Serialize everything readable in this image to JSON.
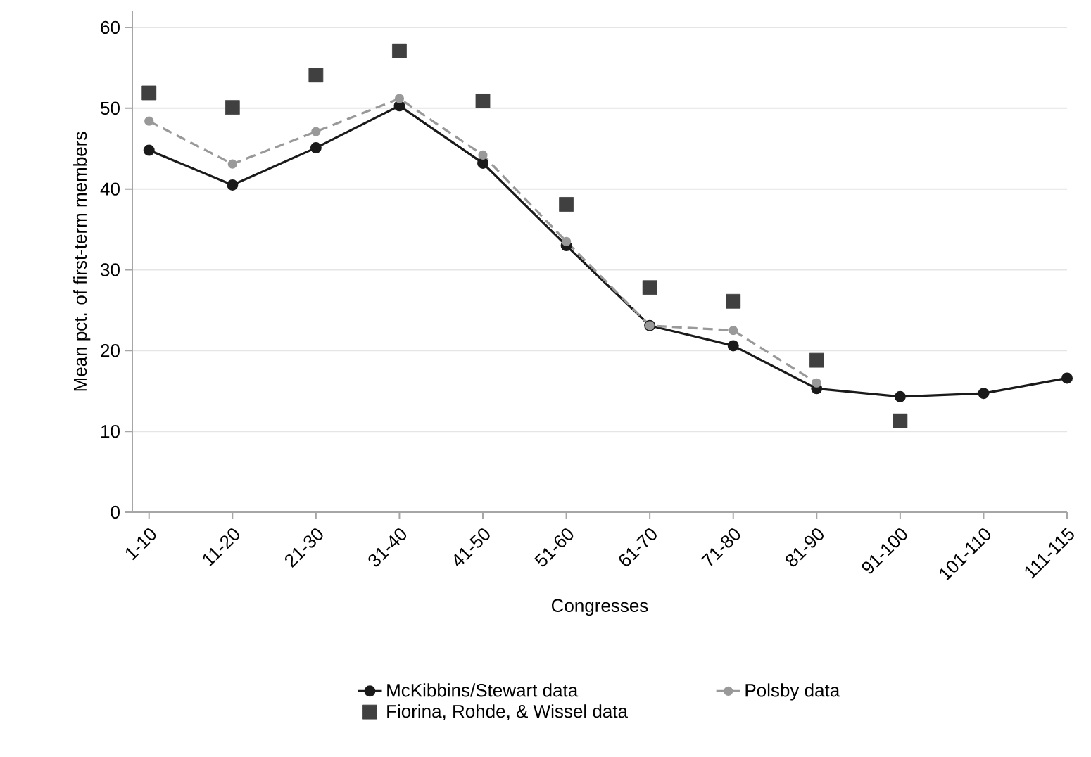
{
  "chart_data": {
    "type": "line",
    "xlabel": "Congresses",
    "ylabel": "Mean pct. of first-term members",
    "categories": [
      "1-10",
      "11-20",
      "21-30",
      "31-40",
      "41-50",
      "51-60",
      "61-70",
      "71-80",
      "81-90",
      "91-100",
      "101-110",
      "111-115"
    ],
    "series": [
      {
        "name": "McKibbins/Stewart data",
        "color": "#1a1a1a",
        "line_style": "solid",
        "marker": "circle",
        "values": [
          44.8,
          40.5,
          45.1,
          50.3,
          43.2,
          33.0,
          23.1,
          20.6,
          15.3,
          14.3,
          14.7,
          16.6
        ]
      },
      {
        "name": "Polsby data",
        "color": "#999999",
        "line_style": "dashed",
        "marker": "circle",
        "values": [
          48.4,
          43.1,
          47.1,
          51.2,
          44.2,
          33.5,
          23.1,
          22.5,
          16.0,
          null,
          null,
          null
        ]
      },
      {
        "name": "Fiorina, Rohde, & Wissel data",
        "type": "scatter",
        "color": "#404040",
        "marker": "square",
        "values": [
          51.9,
          50.1,
          54.1,
          57.1,
          50.9,
          38.1,
          27.8,
          26.1,
          18.8,
          11.3,
          null,
          null
        ]
      }
    ],
    "ylim": [
      0,
      62
    ],
    "yticks": [
      0,
      10,
      20,
      30,
      40,
      50,
      60
    ],
    "grid": "y",
    "legend": "bottom"
  }
}
